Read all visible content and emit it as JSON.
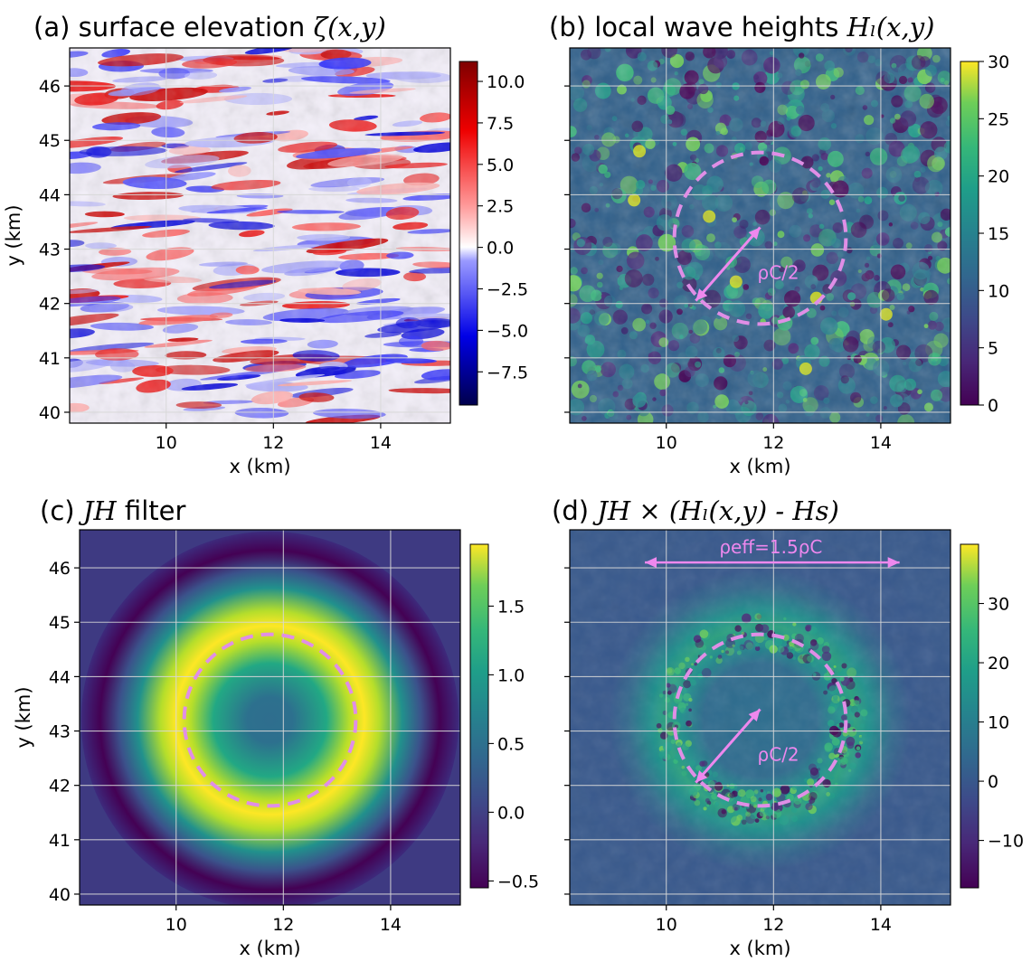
{
  "chart_data": [
    {
      "id": "a",
      "type": "heatmap",
      "title_prefix": "(a) surface elevation",
      "title_math": "ζ(x,y)",
      "xlabel": "x (km)",
      "ylabel": "y (km)",
      "xlim": [
        8.2,
        15.3
      ],
      "ylim": [
        39.8,
        46.7
      ],
      "xticks": [
        10,
        12,
        14
      ],
      "yticks": [
        40,
        41,
        42,
        43,
        44,
        45,
        46
      ],
      "grid": true,
      "colormap": "seismic",
      "colorbar": {
        "range": [
          -9.5,
          11.2
        ],
        "ticks": [
          10.0,
          7.5,
          5.0,
          2.5,
          0.0,
          -2.5,
          -5.0,
          -7.5
        ],
        "tick_labels": [
          "10.0",
          "7.5",
          "5.0",
          "2.5",
          "0.0",
          "−2.5",
          "−5.0",
          "−7.5"
        ]
      }
    },
    {
      "id": "b",
      "type": "heatmap",
      "title_prefix": "(b) local wave heights",
      "title_math": "Hₗ(x,y)",
      "xlabel": "x (km)",
      "ylabel": "",
      "xlim": [
        8.2,
        15.3
      ],
      "ylim": [
        39.8,
        46.7
      ],
      "xticks": [
        10,
        12,
        14
      ],
      "yticks": [
        40,
        41,
        42,
        43,
        44,
        45,
        46
      ],
      "grid": true,
      "colormap": "viridis",
      "circle": {
        "cx": 11.75,
        "cy": 43.2,
        "r": 1.6,
        "style": "dashed",
        "color": "#e08ee6"
      },
      "arrow_label": "ρC/2",
      "colorbar": {
        "range": [
          0,
          30
        ],
        "ticks": [
          30,
          25,
          20,
          15,
          10,
          5,
          0
        ],
        "tick_labels": [
          "30",
          "25",
          "20",
          "15",
          "10",
          "5",
          "0"
        ]
      }
    },
    {
      "id": "c",
      "type": "heatmap",
      "title_prefix": "(c)",
      "title_math": "JH",
      "title_suffix": "filter",
      "xlabel": "x (km)",
      "ylabel": "y (km)",
      "xlim": [
        8.2,
        15.3
      ],
      "ylim": [
        39.8,
        46.7
      ],
      "xticks": [
        10,
        12,
        14
      ],
      "yticks": [
        40,
        41,
        42,
        43,
        44,
        45,
        46
      ],
      "grid": true,
      "colormap": "viridis",
      "circle": {
        "cx": 11.75,
        "cy": 43.2,
        "r": 1.6,
        "style": "dashed",
        "color": "#e08ee6"
      },
      "colorbar": {
        "range": [
          -0.55,
          1.95
        ],
        "ticks": [
          1.5,
          1.0,
          0.5,
          0.0,
          -0.5
        ],
        "tick_labels": [
          "1.5",
          "1.0",
          "0.5",
          "0.0",
          "−0.5"
        ]
      }
    },
    {
      "id": "d",
      "type": "heatmap",
      "title_prefix": "(d)",
      "title_math": "JH × (Hₗ(x,y) - Hs)",
      "xlabel": "x (km)",
      "ylabel": "",
      "xlim": [
        8.2,
        15.3
      ],
      "ylim": [
        39.8,
        46.7
      ],
      "xticks": [
        10,
        12,
        14
      ],
      "yticks": [
        40,
        41,
        42,
        43,
        44,
        45,
        46
      ],
      "grid": true,
      "colormap": "viridis",
      "circle": {
        "cx": 11.75,
        "cy": 43.2,
        "r": 1.6,
        "style": "dashed",
        "color": "#e08ee6"
      },
      "arrow_label": "ρC/2",
      "span_label": "ρeff=1.5ρC",
      "colorbar": {
        "range": [
          -18,
          40
        ],
        "ticks": [
          30,
          20,
          10,
          0,
          -10
        ],
        "tick_labels": [
          "30",
          "20",
          "10",
          "0",
          "−10"
        ]
      }
    }
  ]
}
